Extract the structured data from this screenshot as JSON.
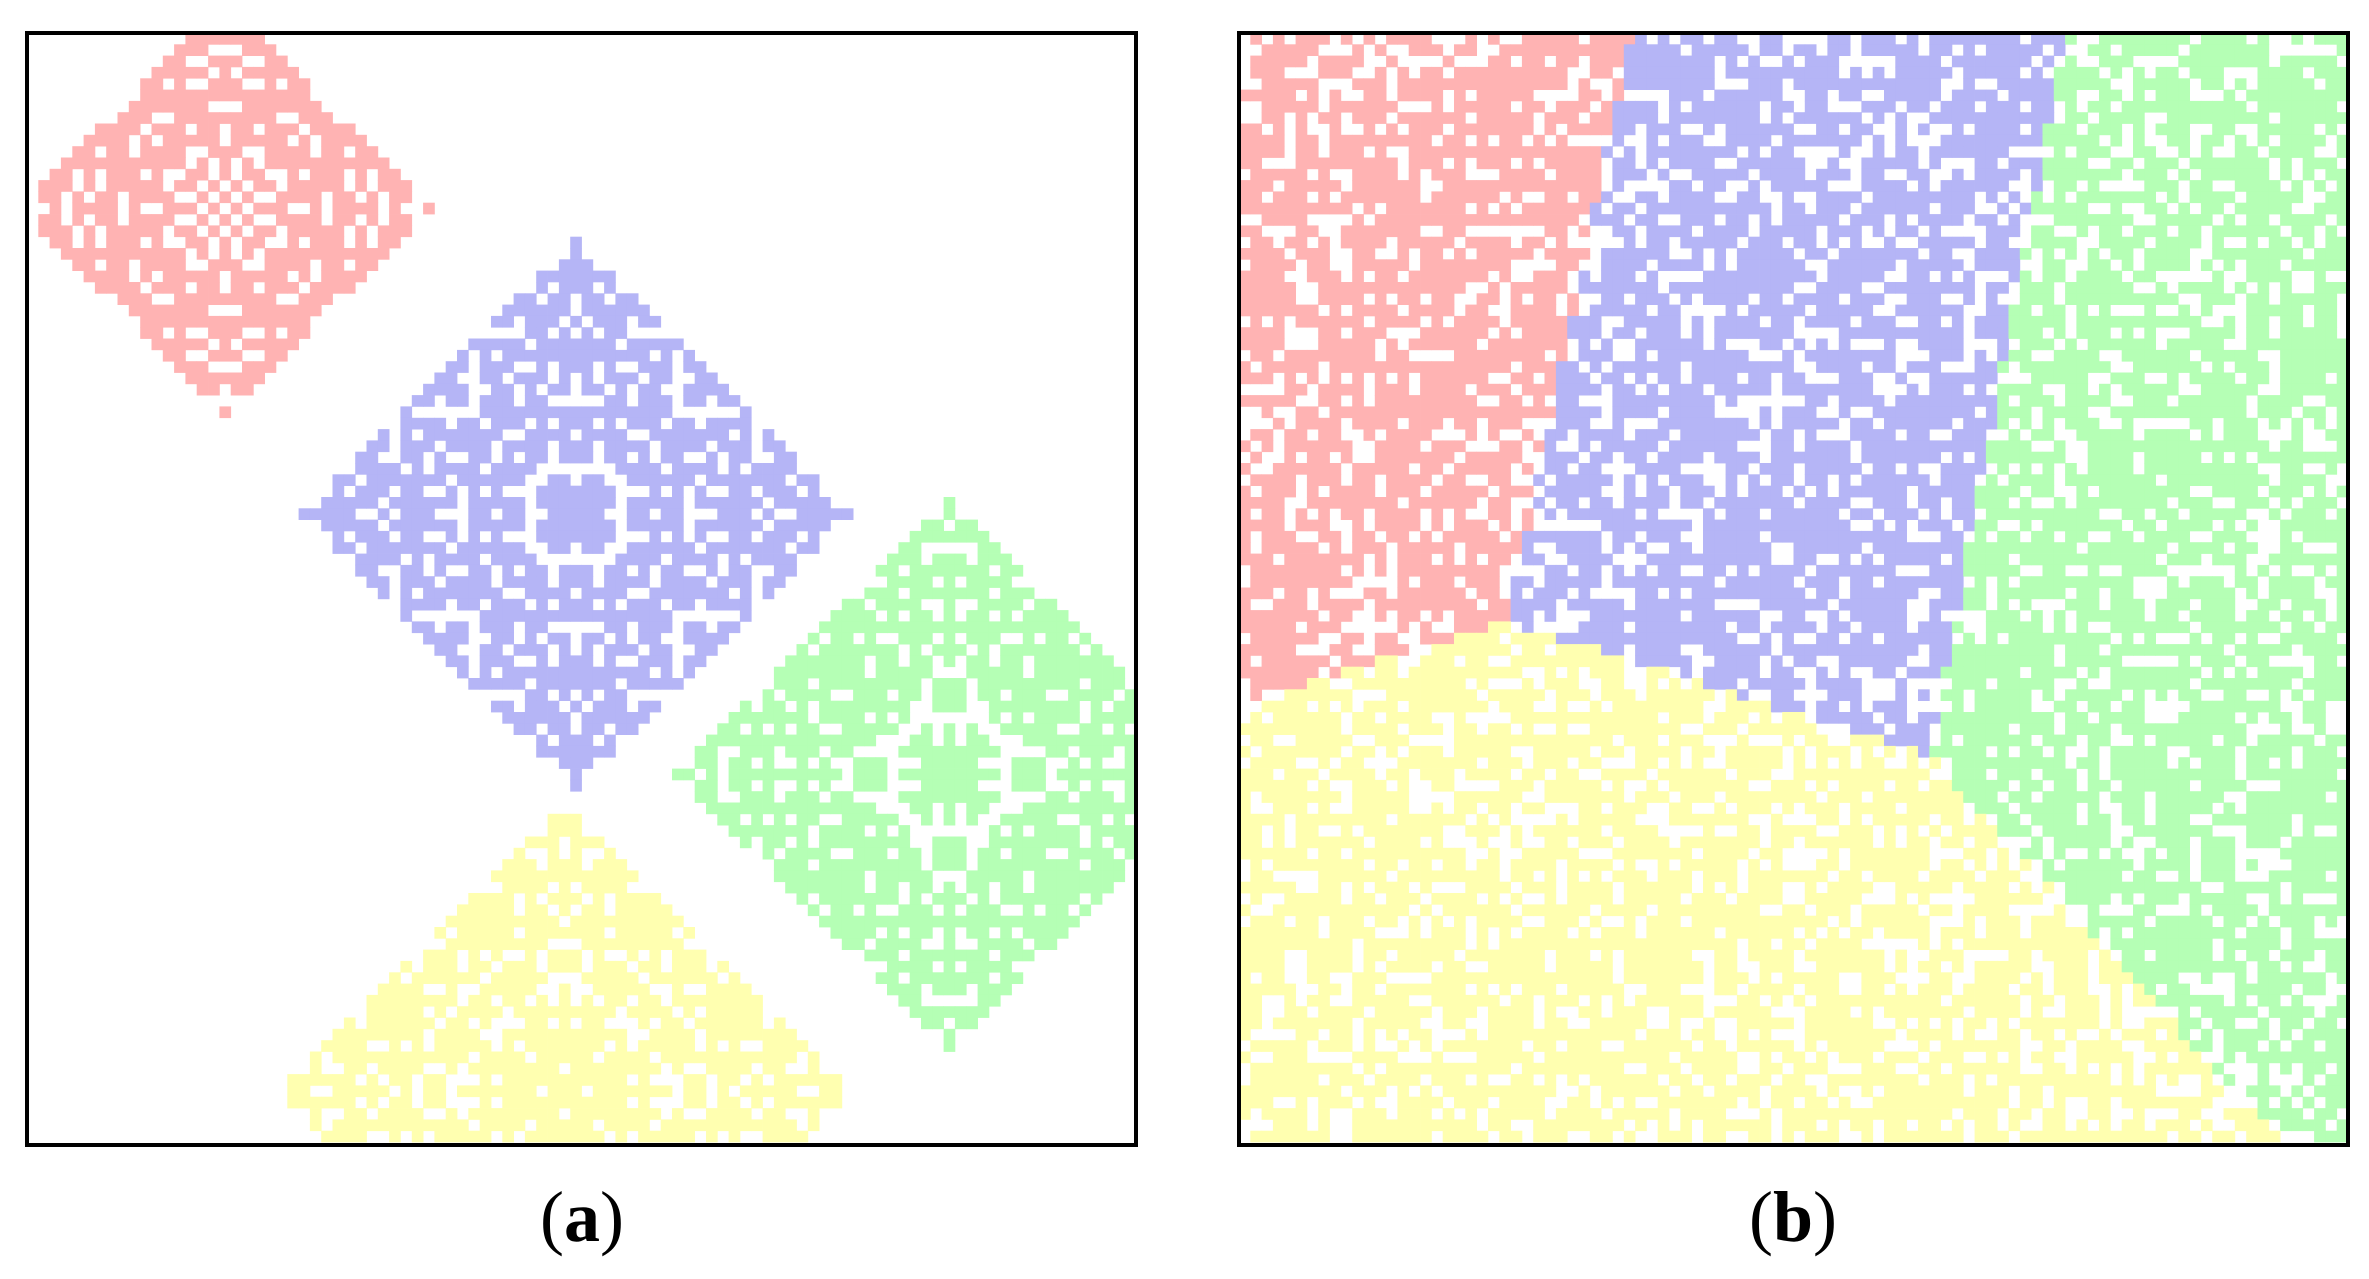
{
  "panels": [
    {
      "open": "(",
      "letter": "a",
      "close": ")"
    },
    {
      "open": "(",
      "letter": "b",
      "close": ")"
    }
  ]
}
